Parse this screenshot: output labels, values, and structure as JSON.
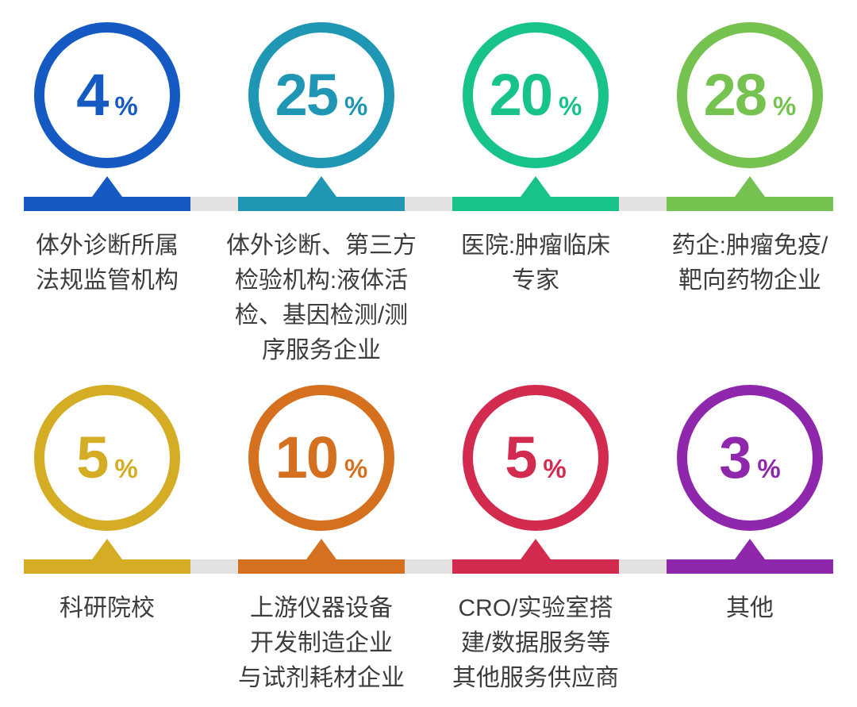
{
  "chart_data": {
    "type": "pie",
    "title": "",
    "unit": "%",
    "categories": [
      "体外诊断所属法规监管机构",
      "体外诊断、第三方检验机构:液体活检、基因检测/测序服务企业",
      "医院:肿瘤临床专家",
      "药企:肿瘤免疫/靶向药物企业",
      "科研院校",
      "上游仪器设备开发制造企业与试剂耗材企业",
      "CRO/实验室搭建/数据服务等其他服务供应商",
      "其他"
    ],
    "values": [
      4,
      25,
      20,
      28,
      5,
      10,
      5,
      3
    ],
    "colors": [
      "#155AC3",
      "#1E96B4",
      "#17C38B",
      "#76C250",
      "#D4AD24",
      "#D5701F",
      "#D32A50",
      "#8F27AD"
    ],
    "legend_position": "none",
    "layout": "2 rows of 4 circular percentage badges, each pointing to a colored segment on a gray track with a category label below"
  },
  "rows": [
    {
      "cards": [
        {
          "value": "4",
          "unit": "%",
          "color": "#155AC3",
          "label": "体外诊断所属\n法规监管机构"
        },
        {
          "value": "25",
          "unit": "%",
          "color": "#1E96B4",
          "label": "体外诊断、第三方\n检验机构:液体活\n检、基因检测/测\n序服务企业"
        },
        {
          "value": "20",
          "unit": "%",
          "color": "#17C38B",
          "label": "医院:肿瘤临床\n专家"
        },
        {
          "value": "28",
          "unit": "%",
          "color": "#76C250",
          "label": "药企:肿瘤免疫/\n靶向药物企业"
        }
      ]
    },
    {
      "cards": [
        {
          "value": "5",
          "unit": "%",
          "color": "#D4AD24",
          "label": "科研院校"
        },
        {
          "value": "10",
          "unit": "%",
          "color": "#D5701F",
          "label": "上游仪器设备\n开发制造企业\n与试剂耗材企业"
        },
        {
          "value": "5",
          "unit": "%",
          "color": "#D32A50",
          "label": "CRO/实验室搭\n建/数据服务等\n其他服务供应商"
        },
        {
          "value": "3",
          "unit": "%",
          "color": "#8F27AD",
          "label": "其他"
        }
      ]
    }
  ]
}
